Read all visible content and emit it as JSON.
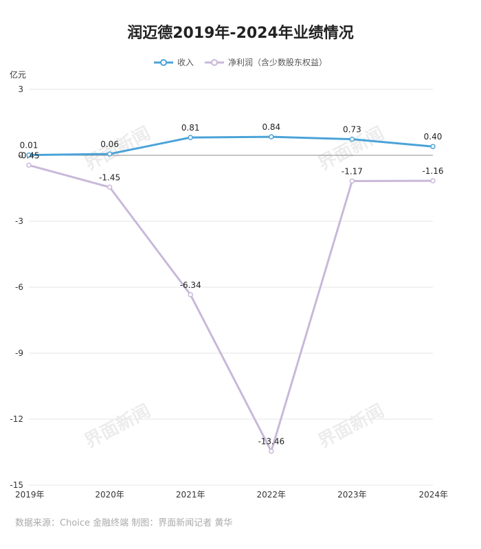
{
  "header": {
    "title": "润迈德2019年-2024年业绩情况"
  },
  "unit_label": "亿元",
  "source": "数据来源：Choice 金融终端 制图：界面新闻记者 黄华",
  "watermark": "界面新闻",
  "chart_data": {
    "type": "line",
    "categories": [
      "2019年",
      "2020年",
      "2021年",
      "2022年",
      "2023年",
      "2024年"
    ],
    "series": [
      {
        "name": "收入",
        "values": [
          0.01,
          0.06,
          0.81,
          0.84,
          0.73,
          0.4
        ],
        "color": "#4aa3d8"
      },
      {
        "name": "净利润（含少数股东权益）",
        "values": [
          -0.45,
          -1.45,
          -6.34,
          -13.46,
          -1.17,
          -1.16
        ],
        "color": "#c9b8d9"
      }
    ],
    "ylim": [
      -15,
      3
    ],
    "yticks": [
      3,
      0,
      -3,
      -6,
      -9,
      -12,
      -15
    ],
    "ylabel": "亿元",
    "grid": true,
    "legend": "top-center"
  }
}
